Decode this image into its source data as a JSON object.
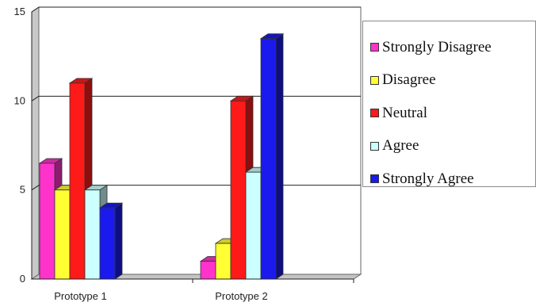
{
  "chart_data": {
    "type": "bar",
    "title": "",
    "xlabel": "",
    "ylabel": "",
    "categories": [
      "Prototype 1",
      "Prototype 2"
    ],
    "series": [
      {
        "name": "Strongly Disagree",
        "color": "#ff33cc",
        "values": [
          6.5,
          1
        ]
      },
      {
        "name": "Disagree",
        "color": "#ffff33",
        "values": [
          5,
          2
        ]
      },
      {
        "name": "Neutral",
        "color": "#ff1a1a",
        "values": [
          11,
          10
        ]
      },
      {
        "name": "Agree",
        "color": "#ccffff",
        "values": [
          5,
          6
        ]
      },
      {
        "name": "Strongly Agree",
        "color": "#1a1aee",
        "values": [
          4,
          13.5
        ]
      }
    ],
    "ylim": [
      0,
      15
    ],
    "yticks": [
      "0",
      "5",
      "10",
      "15"
    ],
    "grid": true,
    "legend_position": "right"
  }
}
